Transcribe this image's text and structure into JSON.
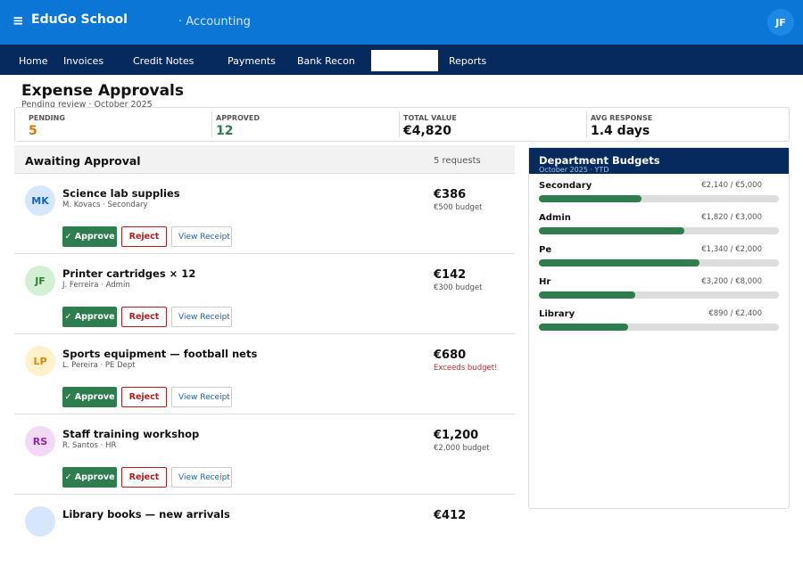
{
  "header": {
    "menu_icon": "≡",
    "app_name": "EduGo School",
    "module": "· Accounting",
    "user_initials": "JF"
  },
  "nav": {
    "tabs": [
      "Home",
      "Invoices",
      "Credit Notes",
      "Payments",
      "Bank Recon",
      "Reports"
    ]
  },
  "page": {
    "title": "Expense Approvals",
    "subtitle": "Pending review · October 2025"
  },
  "stats": [
    {
      "label": "PENDING",
      "value": "5",
      "color": "#d97706"
    },
    {
      "label": "APPROVED",
      "value": "12",
      "color": "#2e7d4f"
    },
    {
      "label": "TOTAL VALUE",
      "value": "€4,820",
      "color": "#111111"
    },
    {
      "label": "AVG RESPONSE",
      "value": "1.4 days",
      "color": "#111111"
    }
  ],
  "approvals": {
    "title": "Awaiting Approval",
    "count": "5 requests",
    "buttons": {
      "approve": "✓ Approve",
      "reject": "Reject",
      "receipt": "View Receipt"
    },
    "items": [
      {
        "initials": "MK",
        "title": "Science lab supplies",
        "meta": "M. Kovacs · Secondary",
        "amount": "€386",
        "note": "€500 budget",
        "note_color": "#555555"
      },
      {
        "initials": "JF",
        "title": "Printer cartridges × 12",
        "meta": "J. Ferreira · Admin",
        "amount": "€142",
        "note": "€300 budget",
        "note_color": "#555555"
      },
      {
        "initials": "LP",
        "title": "Sports equipment — football nets",
        "meta": "L. Pereira · PE Dept",
        "amount": "€680",
        "note": "Exceeds budget!",
        "note_color": "#c62828"
      },
      {
        "initials": "RS",
        "title": "Staff training workshop",
        "meta": "R. Santos · HR",
        "amount": "€1,200",
        "note": "€2,000 budget",
        "note_color": "#555555"
      },
      {
        "title": "Library books — new arrivals",
        "amount": "€412"
      }
    ]
  },
  "budgets": {
    "title": "Department Budgets",
    "subtitle": "October 2025 · YTD",
    "bar_color": "#2e7d4f",
    "items": [
      {
        "name": "Secondary",
        "amount": "€2,140 / €5,000",
        "spent": 2140,
        "budget": 5000
      },
      {
        "name": "Admin",
        "amount": "€1,820 / €3,000",
        "spent": 1820,
        "budget": 3000
      },
      {
        "name": "Pe",
        "amount": "€1,340 / €2,000",
        "spent": 1340,
        "budget": 2000
      },
      {
        "name": "Hr",
        "amount": "€3,200 / €8,000",
        "spent": 3200,
        "budget": 8000
      },
      {
        "name": "Library",
        "amount": "€890 / €2,400",
        "spent": 890,
        "budget": 2400
      }
    ]
  }
}
